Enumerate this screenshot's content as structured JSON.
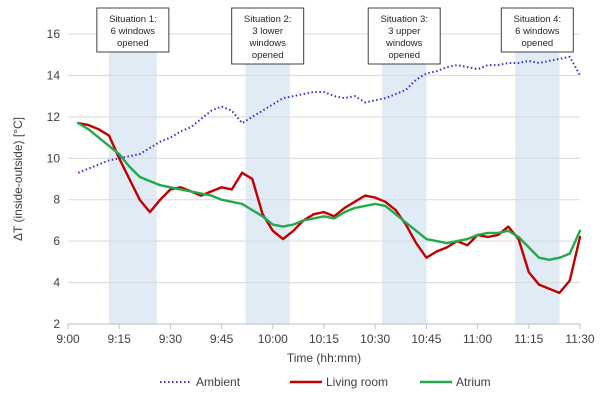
{
  "chart_data": {
    "type": "line",
    "xlabel": "Time (hh:mm)",
    "ylabel": "ΔT (inside-outside) [°C]",
    "x_ticks": [
      "9:00",
      "9:15",
      "9:30",
      "9:45",
      "10:00",
      "10:15",
      "10:30",
      "10:45",
      "11:00",
      "11:15",
      "11:30"
    ],
    "xlim_minutes_after_9": [
      0,
      150
    ],
    "ylim": [
      2,
      16
    ],
    "y_ticks": [
      2,
      4,
      6,
      8,
      10,
      12,
      14,
      16
    ],
    "grid": "horizontal",
    "legend_position": "bottom",
    "situations": [
      {
        "label": [
          "Situation 1:",
          "6 windows",
          "opened"
        ],
        "start": "9:12",
        "end": "9:26"
      },
      {
        "label": [
          "Situation 2:",
          "3 lower",
          "windows",
          "opened"
        ],
        "start": "9:52",
        "end": "10:05"
      },
      {
        "label": [
          "Situation 3:",
          "3 upper",
          "windows",
          "opened"
        ],
        "start": "10:32",
        "end": "10:45"
      },
      {
        "label": [
          "Situation 4:",
          "6 windows",
          "opened"
        ],
        "start": "11:11",
        "end": "11:24"
      }
    ],
    "series": [
      {
        "name": "Ambient",
        "color": "#3333cc",
        "style": "dotted",
        "x": [
          "9:03",
          "9:06",
          "9:09",
          "9:12",
          "9:15",
          "9:18",
          "9:21",
          "9:24",
          "9:27",
          "9:30",
          "9:33",
          "9:36",
          "9:39",
          "9:42",
          "9:45",
          "9:48",
          "9:51",
          "9:54",
          "9:57",
          "10:00",
          "10:03",
          "10:06",
          "10:09",
          "10:12",
          "10:15",
          "10:18",
          "10:21",
          "10:24",
          "10:27",
          "10:30",
          "10:33",
          "10:36",
          "10:39",
          "10:42",
          "10:45",
          "10:48",
          "10:51",
          "10:54",
          "10:57",
          "11:00",
          "11:03",
          "11:06",
          "11:09",
          "11:12",
          "11:15",
          "11:18",
          "11:21",
          "11:24",
          "11:27",
          "11:30"
        ],
        "y": [
          9.3,
          9.5,
          9.7,
          9.9,
          10.0,
          10.1,
          10.2,
          10.5,
          10.8,
          11.0,
          11.3,
          11.5,
          11.9,
          12.3,
          12.5,
          12.3,
          11.7,
          12.0,
          12.3,
          12.6,
          12.9,
          13.0,
          13.1,
          13.2,
          13.2,
          13.0,
          12.9,
          13.0,
          12.7,
          12.8,
          12.9,
          13.1,
          13.3,
          13.8,
          14.1,
          14.2,
          14.4,
          14.5,
          14.4,
          14.3,
          14.5,
          14.5,
          14.6,
          14.6,
          14.7,
          14.6,
          14.7,
          14.8,
          14.9,
          14.0
        ]
      },
      {
        "name": "Living room",
        "color": "#c00000",
        "style": "solid",
        "x": [
          "9:03",
          "9:06",
          "9:09",
          "9:12",
          "9:15",
          "9:18",
          "9:21",
          "9:24",
          "9:27",
          "9:30",
          "9:33",
          "9:36",
          "9:39",
          "9:42",
          "9:45",
          "9:48",
          "9:51",
          "9:54",
          "9:57",
          "10:00",
          "10:03",
          "10:06",
          "10:09",
          "10:12",
          "10:15",
          "10:18",
          "10:21",
          "10:24",
          "10:27",
          "10:30",
          "10:33",
          "10:36",
          "10:39",
          "10:42",
          "10:45",
          "10:48",
          "10:51",
          "10:54",
          "10:57",
          "11:00",
          "11:03",
          "11:06",
          "11:09",
          "11:12",
          "11:15",
          "11:18",
          "11:21",
          "11:24",
          "11:27",
          "11:30"
        ],
        "y": [
          11.7,
          11.6,
          11.4,
          11.1,
          10.0,
          9.0,
          8.0,
          7.4,
          8.0,
          8.5,
          8.6,
          8.4,
          8.2,
          8.4,
          8.6,
          8.5,
          9.3,
          9.0,
          7.3,
          6.5,
          6.1,
          6.5,
          7.0,
          7.3,
          7.4,
          7.2,
          7.6,
          7.9,
          8.2,
          8.1,
          7.9,
          7.5,
          6.8,
          5.9,
          5.2,
          5.5,
          5.7,
          6.0,
          5.8,
          6.3,
          6.2,
          6.3,
          6.7,
          6.1,
          4.5,
          3.9,
          3.7,
          3.5,
          4.1,
          6.2
        ]
      },
      {
        "name": "Atrium",
        "color": "#22aa4a",
        "style": "solid",
        "x": [
          "9:03",
          "9:06",
          "9:09",
          "9:12",
          "9:15",
          "9:18",
          "9:21",
          "9:24",
          "9:27",
          "9:30",
          "9:33",
          "9:36",
          "9:39",
          "9:42",
          "9:45",
          "9:48",
          "9:51",
          "9:54",
          "9:57",
          "10:00",
          "10:03",
          "10:06",
          "10:09",
          "10:12",
          "10:15",
          "10:18",
          "10:21",
          "10:24",
          "10:27",
          "10:30",
          "10:33",
          "10:36",
          "10:39",
          "10:42",
          "10:45",
          "10:48",
          "10:51",
          "10:54",
          "10:57",
          "11:00",
          "11:03",
          "11:06",
          "11:09",
          "11:12",
          "11:15",
          "11:18",
          "11:21",
          "11:24",
          "11:27",
          "11:30"
        ],
        "y": [
          11.7,
          11.4,
          11.0,
          10.6,
          10.2,
          9.6,
          9.1,
          8.9,
          8.7,
          8.6,
          8.5,
          8.4,
          8.3,
          8.2,
          8.0,
          7.9,
          7.8,
          7.5,
          7.2,
          6.8,
          6.7,
          6.8,
          7.0,
          7.1,
          7.2,
          7.1,
          7.4,
          7.6,
          7.7,
          7.8,
          7.7,
          7.3,
          6.9,
          6.5,
          6.1,
          6.0,
          5.9,
          6.0,
          6.1,
          6.3,
          6.4,
          6.4,
          6.5,
          6.2,
          5.7,
          5.2,
          5.1,
          5.2,
          5.4,
          6.5
        ]
      }
    ]
  }
}
